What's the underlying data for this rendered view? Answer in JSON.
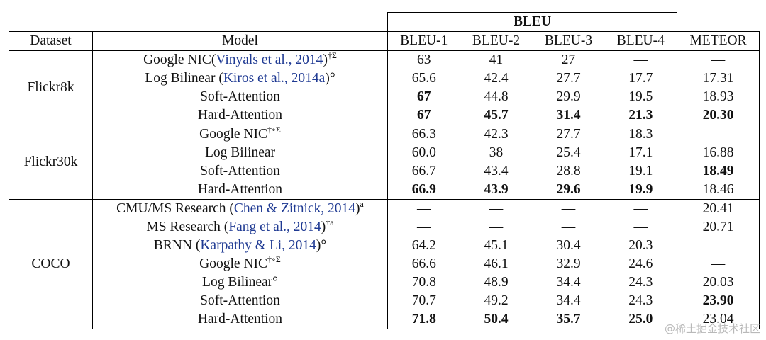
{
  "header": {
    "group": "BLEU",
    "columns": [
      "Dataset",
      "Model",
      "BLEU-1",
      "BLEU-2",
      "BLEU-3",
      "BLEU-4",
      "METEOR"
    ]
  },
  "groups": [
    {
      "dataset": "Flickr8k",
      "rows": [
        {
          "name": "Google NIC(",
          "cite": "Vinyals et al., 2014",
          "post": ")",
          "sup": "†Σ",
          "v": [
            "63",
            "41",
            "27",
            "—",
            "—"
          ],
          "b": [
            false,
            false,
            false,
            false,
            false
          ]
        },
        {
          "name": "Log Bilinear (",
          "cite": "Kiros et al., 2014a",
          "post": ")°",
          "sup": "",
          "v": [
            "65.6",
            "42.4",
            "27.7",
            "17.7",
            "17.31"
          ],
          "b": [
            false,
            false,
            false,
            false,
            false
          ]
        },
        {
          "name": "Soft-Attention",
          "cite": "",
          "post": "",
          "sup": "",
          "v": [
            "67",
            "44.8",
            "29.9",
            "19.5",
            "18.93"
          ],
          "b": [
            true,
            false,
            false,
            false,
            false
          ]
        },
        {
          "name": "Hard-Attention",
          "cite": "",
          "post": "",
          "sup": "",
          "v": [
            "67",
            "45.7",
            "31.4",
            "21.3",
            "20.30"
          ],
          "b": [
            true,
            true,
            true,
            true,
            true
          ]
        }
      ]
    },
    {
      "dataset": "Flickr30k",
      "rows": [
        {
          "name": "Google NIC",
          "cite": "",
          "post": "",
          "sup": "†∘Σ",
          "v": [
            "66.3",
            "42.3",
            "27.7",
            "18.3",
            "—"
          ],
          "b": [
            false,
            false,
            false,
            false,
            false
          ]
        },
        {
          "name": "Log Bilinear",
          "cite": "",
          "post": "",
          "sup": "",
          "v": [
            "60.0",
            "38",
            "25.4",
            "17.1",
            "16.88"
          ],
          "b": [
            false,
            false,
            false,
            false,
            false
          ]
        },
        {
          "name": "Soft-Attention",
          "cite": "",
          "post": "",
          "sup": "",
          "v": [
            "66.7",
            "43.4",
            "28.8",
            "19.1",
            "18.49"
          ],
          "b": [
            false,
            false,
            false,
            false,
            true
          ]
        },
        {
          "name": "Hard-Attention",
          "cite": "",
          "post": "",
          "sup": "",
          "v": [
            "66.9",
            "43.9",
            "29.6",
            "19.9",
            "18.46"
          ],
          "b": [
            true,
            true,
            true,
            true,
            false
          ]
        }
      ]
    },
    {
      "dataset": "COCO",
      "rows": [
        {
          "name": "CMU/MS Research (",
          "cite": "Chen & Zitnick, 2014",
          "post": ")",
          "sup": "a",
          "v": [
            "—",
            "—",
            "—",
            "—",
            "20.41"
          ],
          "b": [
            false,
            false,
            false,
            false,
            false
          ]
        },
        {
          "name": "MS Research (",
          "cite": "Fang et al., 2014",
          "post": ")",
          "sup": "†a",
          "v": [
            "—",
            "—",
            "—",
            "—",
            "20.71"
          ],
          "b": [
            false,
            false,
            false,
            false,
            false
          ]
        },
        {
          "name": "BRNN (",
          "cite": "Karpathy & Li, 2014",
          "post": ")°",
          "sup": "",
          "v": [
            "64.2",
            "45.1",
            "30.4",
            "20.3",
            "—"
          ],
          "b": [
            false,
            false,
            false,
            false,
            false
          ]
        },
        {
          "name": "Google NIC",
          "cite": "",
          "post": "",
          "sup": "†∘Σ",
          "v": [
            "66.6",
            "46.1",
            "32.9",
            "24.6",
            "—"
          ],
          "b": [
            false,
            false,
            false,
            false,
            false
          ]
        },
        {
          "name": "Log Bilinear°",
          "cite": "",
          "post": "",
          "sup": "",
          "v": [
            "70.8",
            "48.9",
            "34.4",
            "24.3",
            "20.03"
          ],
          "b": [
            false,
            false,
            false,
            false,
            false
          ]
        },
        {
          "name": "Soft-Attention",
          "cite": "",
          "post": "",
          "sup": "",
          "v": [
            "70.7",
            "49.2",
            "34.4",
            "24.3",
            "23.90"
          ],
          "b": [
            false,
            false,
            false,
            false,
            true
          ]
        },
        {
          "name": "Hard-Attention",
          "cite": "",
          "post": "",
          "sup": "",
          "v": [
            "71.8",
            "50.4",
            "35.7",
            "25.0",
            "23.04"
          ],
          "b": [
            true,
            true,
            true,
            true,
            false
          ]
        }
      ]
    }
  ],
  "watermark": "@稀土掘金技术社区"
}
